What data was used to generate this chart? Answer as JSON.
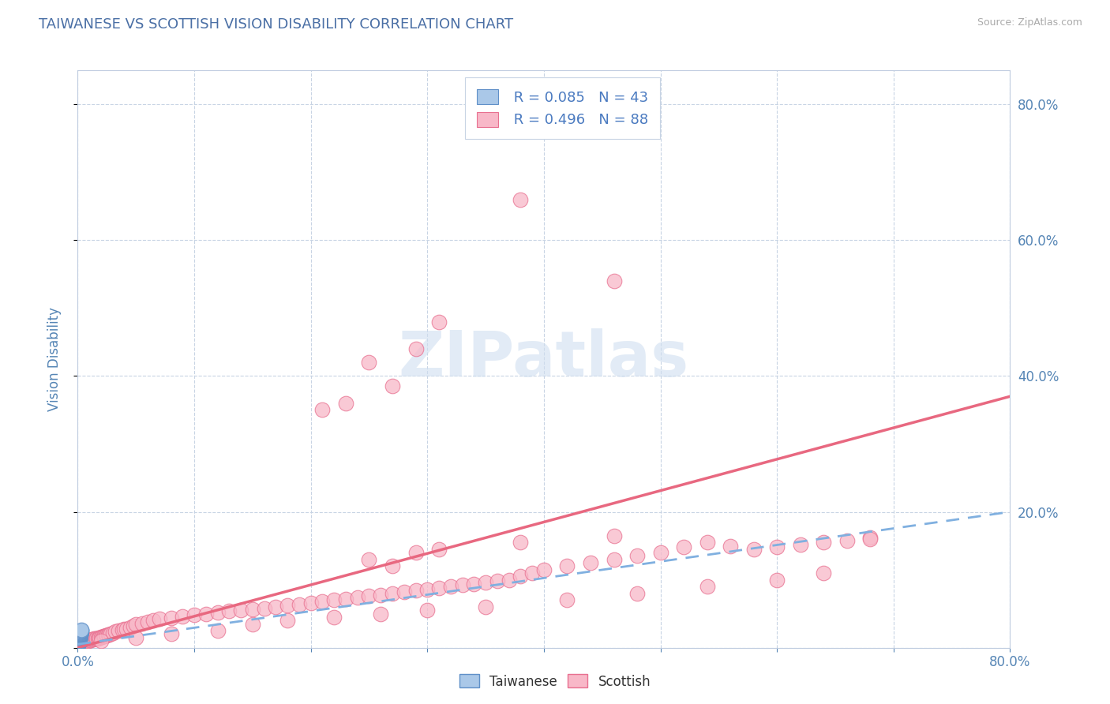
{
  "title": "TAIWANESE VS SCOTTISH VISION DISABILITY CORRELATION CHART",
  "source": "Source: ZipAtlas.com",
  "ylabel": "Vision Disability",
  "xlim": [
    0,
    0.8
  ],
  "ylim": [
    0,
    0.85
  ],
  "taiwanese_R": 0.085,
  "taiwanese_N": 43,
  "scottish_R": 0.496,
  "scottish_N": 88,
  "taiwanese_color": "#aac8e8",
  "taiwanese_edge": "#6090c8",
  "scottish_color": "#f8b8c8",
  "scottish_edge": "#e87090",
  "trend_taiwanese_color": "#80b0e0",
  "trend_scottish_color": "#e86880",
  "title_color": "#4a6fa5",
  "axis_label_color": "#5585b5",
  "right_tick_color": "#5585b5",
  "legend_text_color": "#4a7ac0",
  "background_color": "#ffffff",
  "grid_color": "#c8d4e4",
  "watermark_color": "#d0dff0",
  "yticks": [
    0.0,
    0.2,
    0.4,
    0.6,
    0.8
  ],
  "ytick_labels": [
    "",
    "20.0%",
    "40.0%",
    "60.0%",
    "80.0%"
  ],
  "scottish_x": [
    0.001,
    0.002,
    0.003,
    0.004,
    0.005,
    0.006,
    0.007,
    0.008,
    0.009,
    0.01,
    0.011,
    0.012,
    0.013,
    0.014,
    0.015,
    0.016,
    0.017,
    0.018,
    0.019,
    0.02,
    0.021,
    0.022,
    0.023,
    0.024,
    0.025,
    0.026,
    0.027,
    0.028,
    0.03,
    0.032,
    0.035,
    0.038,
    0.04,
    0.042,
    0.045,
    0.048,
    0.05,
    0.055,
    0.06,
    0.065,
    0.07,
    0.08,
    0.09,
    0.1,
    0.11,
    0.12,
    0.13,
    0.14,
    0.15,
    0.16,
    0.17,
    0.18,
    0.19,
    0.2,
    0.21,
    0.22,
    0.23,
    0.24,
    0.25,
    0.26,
    0.27,
    0.28,
    0.29,
    0.3,
    0.31,
    0.32,
    0.33,
    0.34,
    0.35,
    0.36,
    0.37,
    0.38,
    0.39,
    0.4,
    0.42,
    0.44,
    0.46,
    0.48,
    0.5,
    0.52,
    0.54,
    0.56,
    0.58,
    0.6,
    0.62,
    0.64,
    0.66,
    0.68
  ],
  "scottish_y": [
    0.005,
    0.006,
    0.007,
    0.008,
    0.008,
    0.009,
    0.009,
    0.01,
    0.01,
    0.011,
    0.011,
    0.012,
    0.012,
    0.013,
    0.013,
    0.014,
    0.014,
    0.015,
    0.015,
    0.016,
    0.016,
    0.017,
    0.017,
    0.018,
    0.018,
    0.019,
    0.019,
    0.02,
    0.022,
    0.024,
    0.025,
    0.026,
    0.027,
    0.028,
    0.03,
    0.032,
    0.034,
    0.036,
    0.038,
    0.04,
    0.042,
    0.044,
    0.046,
    0.048,
    0.05,
    0.052,
    0.054,
    0.055,
    0.056,
    0.058,
    0.06,
    0.062,
    0.064,
    0.066,
    0.068,
    0.07,
    0.072,
    0.074,
    0.076,
    0.078,
    0.08,
    0.082,
    0.084,
    0.086,
    0.088,
    0.09,
    0.092,
    0.094,
    0.096,
    0.098,
    0.1,
    0.105,
    0.11,
    0.115,
    0.12,
    0.125,
    0.13,
    0.135,
    0.14,
    0.148,
    0.155,
    0.15,
    0.145,
    0.148,
    0.152,
    0.155,
    0.158,
    0.162
  ],
  "scottish_outliers_x": [
    0.38,
    0.46,
    0.31,
    0.29,
    0.25,
    0.27,
    0.23,
    0.21,
    0.02,
    0.05,
    0.08,
    0.12,
    0.15,
    0.18,
    0.22,
    0.26,
    0.3,
    0.35,
    0.42,
    0.48,
    0.54,
    0.6,
    0.64,
    0.68,
    0.38,
    0.46,
    0.31,
    0.29,
    0.25,
    0.27
  ],
  "scottish_outliers_y": [
    0.66,
    0.54,
    0.48,
    0.44,
    0.42,
    0.385,
    0.36,
    0.35,
    0.01,
    0.015,
    0.02,
    0.025,
    0.035,
    0.04,
    0.045,
    0.05,
    0.055,
    0.06,
    0.07,
    0.08,
    0.09,
    0.1,
    0.11,
    0.16,
    0.155,
    0.165,
    0.145,
    0.14,
    0.13,
    0.12
  ],
  "taiwanese_x": [
    0.0005,
    0.0006,
    0.0007,
    0.0008,
    0.0009,
    0.001,
    0.001,
    0.001,
    0.001,
    0.0012,
    0.0012,
    0.0013,
    0.0013,
    0.0014,
    0.0014,
    0.0015,
    0.0015,
    0.0016,
    0.0016,
    0.0017,
    0.0017,
    0.0018,
    0.0018,
    0.0019,
    0.002,
    0.002,
    0.002,
    0.002,
    0.0021,
    0.0022,
    0.0022,
    0.0023,
    0.0023,
    0.0024,
    0.0024,
    0.0025,
    0.0025,
    0.0026,
    0.0027,
    0.0027,
    0.0028,
    0.0029,
    0.003
  ],
  "taiwanese_y": [
    0.005,
    0.005,
    0.006,
    0.006,
    0.007,
    0.007,
    0.008,
    0.008,
    0.009,
    0.009,
    0.01,
    0.01,
    0.011,
    0.011,
    0.012,
    0.012,
    0.013,
    0.013,
    0.014,
    0.014,
    0.015,
    0.015,
    0.016,
    0.016,
    0.017,
    0.017,
    0.018,
    0.018,
    0.019,
    0.019,
    0.02,
    0.02,
    0.021,
    0.021,
    0.022,
    0.022,
    0.023,
    0.023,
    0.024,
    0.024,
    0.025,
    0.025,
    0.026
  ],
  "sc_trend_x0": 0.0,
  "sc_trend_y0": 0.0,
  "sc_trend_x1": 0.8,
  "sc_trend_y1": 0.37,
  "tw_trend_x0": 0.0,
  "tw_trend_y0": 0.005,
  "tw_trend_x1": 0.8,
  "tw_trend_y1": 0.2
}
